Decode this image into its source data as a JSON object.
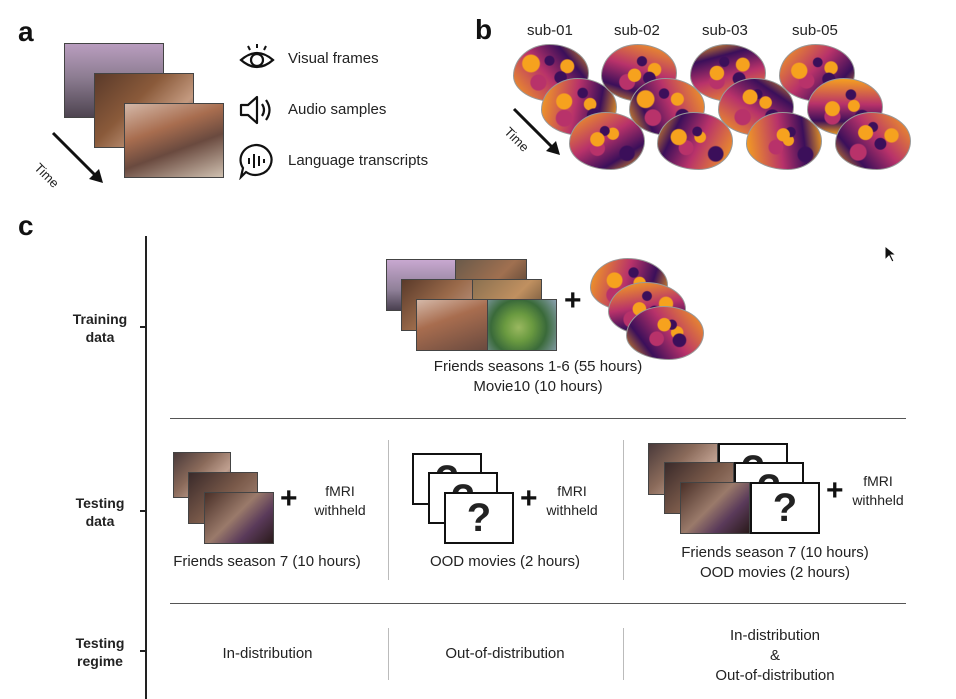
{
  "panels": {
    "a": "a",
    "b": "b",
    "c": "c"
  },
  "panel_a": {
    "time_label": "Time",
    "modalities": [
      {
        "icon": "eye-icon",
        "label": "Visual frames"
      },
      {
        "icon": "speaker-icon",
        "label": "Audio samples"
      },
      {
        "icon": "speech-bubble-icon",
        "label": "Language transcripts"
      }
    ]
  },
  "panel_b": {
    "time_label": "Time",
    "subjects": [
      "sub-01",
      "sub-02",
      "sub-03",
      "sub-05"
    ]
  },
  "panel_c": {
    "rows": {
      "training": "Training\ndata",
      "testing": "Testing\ndata",
      "regime": "Testing\nregime"
    },
    "training": {
      "plus": "+",
      "line1": "Friends seasons 1-6 (55 hours)",
      "line2": "Movie10 (10 hours)"
    },
    "testing": [
      {
        "plus": "+",
        "withheld": "fMRI\nwithheld",
        "caption": "Friends season 7 (10 hours)"
      },
      {
        "plus": "+",
        "withheld": "fMRI\nwithheld",
        "caption": "OOD movies (2 hours)",
        "q": "?"
      },
      {
        "plus": "+",
        "withheld": "fMRI\nwithheld",
        "caption": "Friends season 7 (10 hours)\nOOD movies (2 hours)",
        "q": "?"
      }
    ],
    "regime": [
      "In-distribution",
      "Out-of-distribution",
      "In-distribution\n&\nOut-of-distribution"
    ]
  },
  "colors": {
    "brain_dark": "#3b0f5a",
    "brain_mid": "#b8326a",
    "brain_light": "#f6a21e"
  }
}
